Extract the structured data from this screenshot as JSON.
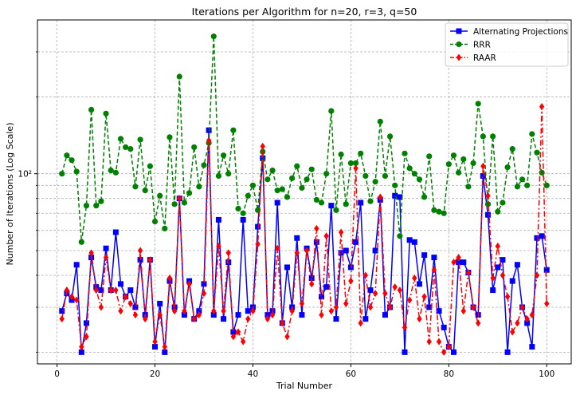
{
  "chart_data": {
    "type": "line",
    "title": "Iterations per Algorithm for n=20, r=3, q=50",
    "xlabel": "Trial Number",
    "ylabel": "Number of Iterations (Log Scale)",
    "y_scale": "log",
    "xlim": [
      -4,
      105
    ],
    "ylim": [
      18,
      400
    ],
    "grid": true,
    "grid_style": "dashed",
    "legend_position": "upper right",
    "x_ticks": [
      0,
      20,
      40,
      60,
      80,
      100
    ],
    "y_major_ticks": [
      100
    ],
    "y_major_tick_label": "10²",
    "y_minor_ticks": [
      20,
      30,
      40,
      50,
      60,
      70,
      80,
      90,
      200,
      300
    ],
    "x": [
      1,
      2,
      3,
      4,
      5,
      6,
      7,
      8,
      9,
      10,
      11,
      12,
      13,
      14,
      15,
      16,
      17,
      18,
      19,
      20,
      21,
      22,
      23,
      24,
      25,
      26,
      27,
      28,
      29,
      30,
      31,
      32,
      33,
      34,
      35,
      36,
      37,
      38,
      39,
      40,
      41,
      42,
      43,
      44,
      45,
      46,
      47,
      48,
      49,
      50,
      51,
      52,
      53,
      54,
      55,
      56,
      57,
      58,
      59,
      60,
      61,
      62,
      63,
      64,
      65,
      66,
      67,
      68,
      69,
      70,
      71,
      72,
      73,
      74,
      75,
      76,
      77,
      78,
      79,
      80,
      81,
      82,
      83,
      84,
      85,
      86,
      87,
      88,
      89,
      90,
      91,
      92,
      93,
      94,
      95,
      96,
      97,
      98,
      99,
      100
    ],
    "series": [
      {
        "name": "Alternating Projections",
        "color": "#0000ff",
        "marker": "square",
        "linestyle": "solid",
        "values": [
          29,
          34,
          32,
          44,
          20,
          26,
          47,
          36,
          35,
          51,
          35,
          59,
          37,
          33,
          35,
          30,
          46,
          28,
          46,
          21,
          31,
          20,
          38,
          30,
          80,
          28,
          38,
          27,
          29,
          37,
          148,
          28,
          66,
          27,
          45,
          24,
          28,
          66,
          29,
          30,
          62,
          115,
          28,
          29,
          77,
          26,
          43,
          30,
          56,
          28,
          51,
          39,
          54,
          33,
          36,
          75,
          27,
          49,
          50,
          43,
          54,
          77,
          27,
          35,
          50,
          79,
          28,
          30,
          82,
          81,
          20,
          55,
          54,
          37,
          48,
          30,
          47,
          29,
          25,
          21,
          20,
          45,
          45,
          41,
          30,
          28,
          98,
          69,
          35,
          43,
          46,
          20,
          38,
          44,
          30,
          26,
          21,
          56,
          57,
          42
        ]
      },
      {
        "name": "RRR",
        "color": "#008000",
        "marker": "circle",
        "linestyle": "dashed",
        "values": [
          100,
          118,
          113,
          102,
          54,
          75,
          178,
          75,
          78,
          172,
          103,
          101,
          137,
          127,
          125,
          89,
          136,
          86,
          107,
          65,
          82,
          61,
          139,
          76,
          240,
          77,
          84,
          127,
          89,
          108,
          132,
          345,
          98,
          118,
          100,
          148,
          73,
          70,
          82,
          90,
          72,
          122,
          95,
          103,
          86,
          87,
          81,
          96,
          107,
          88,
          95,
          104,
          79,
          77,
          100,
          176,
          72,
          119,
          76,
          110,
          110,
          120,
          98,
          78,
          93,
          160,
          98,
          140,
          90,
          57,
          120,
          105,
          100,
          95,
          81,
          117,
          72,
          71,
          70,
          109,
          118,
          101,
          114,
          89,
          110,
          188,
          140,
          76,
          140,
          71,
          77,
          106,
          125,
          89,
          95,
          90,
          143,
          121,
          101,
          90
        ]
      },
      {
        "name": "RAAR",
        "color": "#ff0000",
        "marker": "diamond",
        "linestyle": "dashdot",
        "values": [
          27,
          35,
          33,
          32,
          21,
          23,
          49,
          35,
          30,
          47,
          35,
          35,
          29,
          33,
          31,
          28,
          50,
          27,
          46,
          22,
          28,
          21,
          39,
          29,
          80,
          29,
          37,
          27,
          28,
          34,
          135,
          29,
          52,
          29,
          49,
          23,
          24,
          22,
          27,
          29,
          53,
          128,
          27,
          28,
          51,
          26,
          23,
          29,
          49,
          31,
          50,
          37,
          61,
          28,
          57,
          29,
          30,
          59,
          31,
          38,
          105,
          26,
          40,
          30,
          34,
          81,
          34,
          30,
          36,
          35,
          25,
          32,
          39,
          27,
          33,
          22,
          42,
          22,
          20,
          21,
          45,
          47,
          29,
          41,
          30,
          26,
          107,
          82,
          39,
          52,
          40,
          33,
          24,
          26,
          30,
          27,
          28,
          40,
          183,
          31
        ]
      }
    ]
  }
}
